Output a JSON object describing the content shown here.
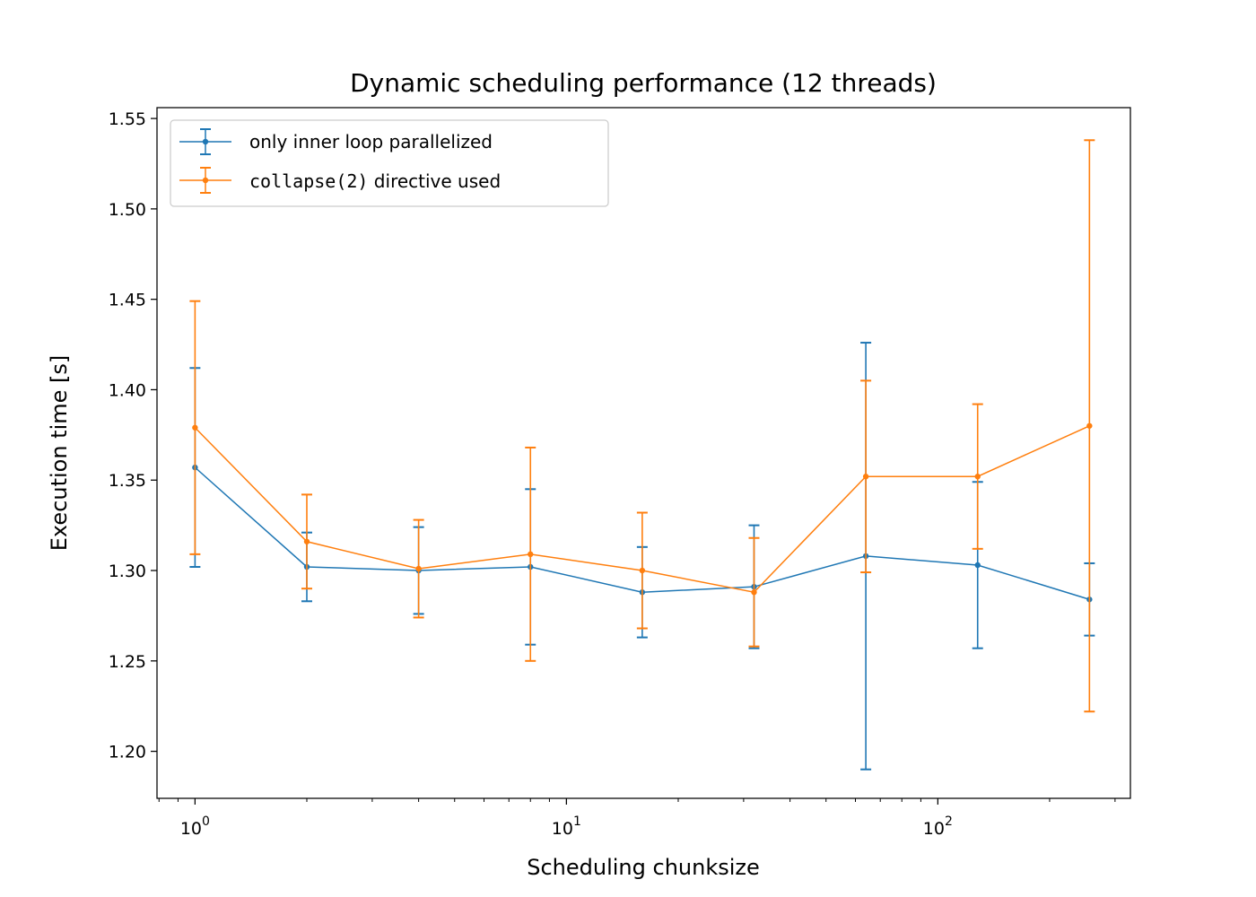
{
  "chart_data": {
    "type": "line",
    "title": "Dynamic scheduling performance (12 threads)",
    "xlabel": "Scheduling chunksize",
    "ylabel": "Execution time [s]",
    "xscale": "log",
    "xlim": [
      0.79,
      330
    ],
    "ylim": [
      1.174,
      1.556
    ],
    "yticks": [
      "1.20",
      "1.25",
      "1.30",
      "1.35",
      "1.40",
      "1.45",
      "1.50",
      "1.55"
    ],
    "xticks": [
      {
        "base": "10",
        "exp": "0"
      },
      {
        "base": "10",
        "exp": "1"
      },
      {
        "base": "10",
        "exp": "2"
      }
    ],
    "grid": false,
    "legend_position": "top-left",
    "x": [
      1,
      2,
      4,
      8,
      16,
      32,
      64,
      128,
      256
    ],
    "series": [
      {
        "name": "only inner loop parallelized",
        "color": "#1f77b4",
        "values": [
          1.357,
          1.302,
          1.3,
          1.302,
          1.288,
          1.291,
          1.308,
          1.303,
          1.284
        ],
        "errors": [
          0.055,
          0.019,
          0.024,
          0.043,
          0.025,
          0.034,
          0.118,
          0.046,
          0.02
        ]
      },
      {
        "name_code": "collapse(2)",
        "name_rest": " directive used",
        "color": "#ff7f0e",
        "values": [
          1.379,
          1.316,
          1.301,
          1.309,
          1.3,
          1.288,
          1.352,
          1.352,
          1.38
        ],
        "errors": [
          0.07,
          0.026,
          0.027,
          0.059,
          0.032,
          0.03,
          0.053,
          0.04,
          0.158
        ]
      }
    ]
  }
}
